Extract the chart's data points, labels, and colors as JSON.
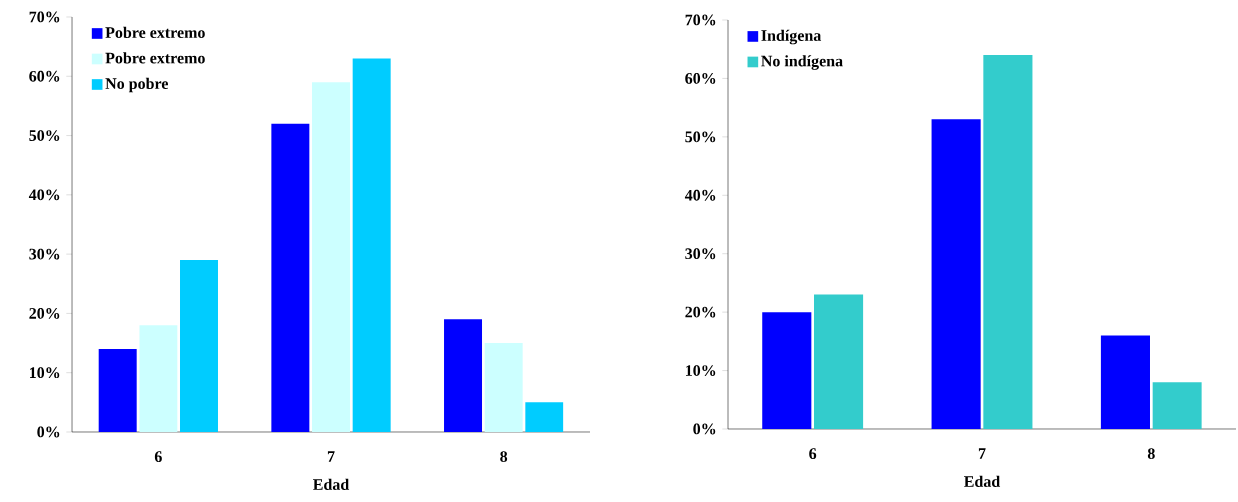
{
  "chart_data": [
    {
      "type": "bar",
      "categories": [
        "6",
        "7",
        "8"
      ],
      "xlabel": "Edad",
      "series": [
        {
          "name": "Pobre extremo",
          "color": "#0000ff",
          "values": [
            14,
            52,
            19
          ]
        },
        {
          "name": "Pobre extremo",
          "color": "#ccffff",
          "values": [
            18,
            59,
            15
          ]
        },
        {
          "name": "No pobre",
          "color": "#00ccff",
          "values": [
            29,
            63,
            5
          ]
        }
      ],
      "ylim": [
        0,
        70
      ],
      "yticks": [
        {
          "value": 0,
          "label": "0%"
        },
        {
          "value": 10,
          "label": "10%"
        },
        {
          "value": 20,
          "label": "20%"
        },
        {
          "value": 30,
          "label": "30%"
        },
        {
          "value": 40,
          "label": "40%"
        },
        {
          "value": 50,
          "label": "50%"
        },
        {
          "value": 60,
          "label": "60%"
        },
        {
          "value": 70,
          "label": "70%"
        }
      ],
      "legend": "top left"
    },
    {
      "type": "bar",
      "categories": [
        "6",
        "7",
        "8"
      ],
      "xlabel": "Edad",
      "series": [
        {
          "name": "Indígena",
          "color": "#0000ff",
          "values": [
            20,
            53,
            16
          ]
        },
        {
          "name": "No indígena",
          "color": "#33cccc",
          "values": [
            23,
            64,
            8
          ]
        }
      ],
      "ylim": [
        0,
        70
      ],
      "yticks": [
        {
          "value": 0,
          "label": "0%"
        },
        {
          "value": 10,
          "label": "10%"
        },
        {
          "value": 20,
          "label": "20%"
        },
        {
          "value": 30,
          "label": "30%"
        },
        {
          "value": 40,
          "label": "40%"
        },
        {
          "value": 50,
          "label": "50%"
        },
        {
          "value": 60,
          "label": "60%"
        },
        {
          "value": 70,
          "label": "70%"
        }
      ],
      "legend": "top left"
    }
  ]
}
